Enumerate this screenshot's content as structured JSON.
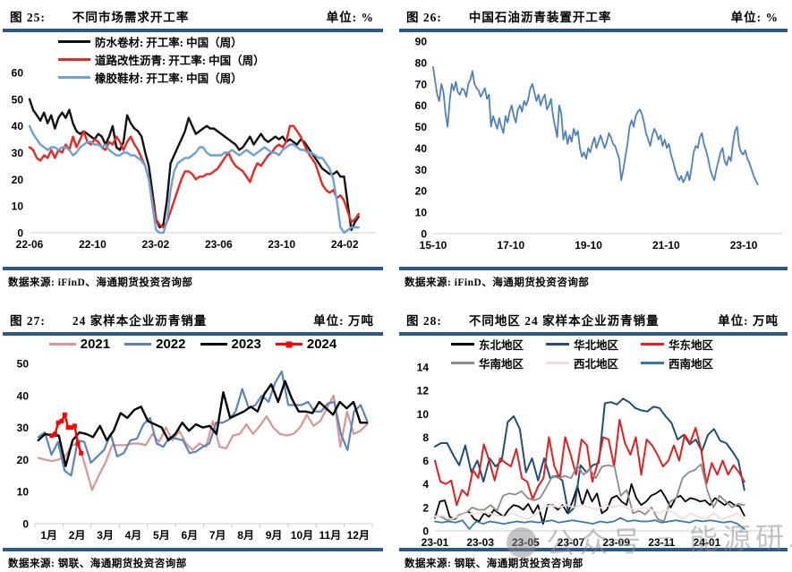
{
  "watermark": {
    "text": "公众号 = 能源研发中心"
  },
  "chart_data": [
    {
      "fig_label": "图 25:",
      "title": "不同市场需求开工率",
      "unit": "单位: %",
      "source": "数据来源: iFinD、海通期货投资咨询部",
      "type": "line",
      "ylim": [
        0,
        60
      ],
      "yticks": [
        0,
        10,
        20,
        30,
        40,
        50,
        60
      ],
      "xticklabels": [
        "22-06",
        "22-10",
        "23-02",
        "23-06",
        "23-10",
        "24-02"
      ],
      "grid": false,
      "legend_position": "top-left-inside",
      "series": [
        {
          "name": "防水卷材: 开工率: 中国（周）",
          "color": "#111111",
          "width": 2.4,
          "x0": 0,
          "x1": 0.95,
          "values": [
            50,
            46,
            44,
            42,
            45,
            41,
            44,
            39,
            43,
            45,
            43,
            46,
            41,
            38,
            37,
            38,
            37,
            36,
            35,
            37,
            36,
            33,
            36,
            40,
            32,
            31,
            34,
            44,
            41,
            39,
            38,
            36,
            30,
            25,
            15,
            5,
            2,
            3,
            12,
            26,
            29,
            32,
            35,
            38,
            43,
            40,
            37,
            38,
            39,
            40,
            39,
            39,
            38,
            37,
            36,
            35,
            34,
            33,
            31,
            32,
            34,
            36,
            33,
            35,
            37,
            35,
            34,
            35,
            36,
            35,
            36,
            34,
            35,
            34,
            33,
            35,
            34,
            32,
            30,
            28,
            26,
            24,
            23,
            22,
            22,
            23,
            21,
            21,
            11,
            1,
            4,
            6
          ]
        },
        {
          "name": "道路改性沥青: 开工率: 中国（周）",
          "color": "#E62A22",
          "width": 2.4,
          "x0": 0,
          "x1": 0.95,
          "values": [
            32,
            31,
            28,
            27,
            29,
            28,
            31,
            28,
            31,
            30,
            33,
            31,
            36,
            32,
            35,
            38,
            34,
            33,
            35,
            34,
            32,
            31,
            34,
            33,
            36,
            34,
            31,
            34,
            36,
            33,
            31,
            28,
            25,
            20,
            12,
            5,
            3,
            2,
            4,
            8,
            12,
            16,
            20,
            23,
            23,
            22,
            20,
            21,
            21,
            22,
            22,
            23,
            24,
            26,
            28,
            30,
            27,
            25,
            24,
            23,
            21,
            19,
            23,
            26,
            25,
            27,
            29,
            30,
            32,
            33,
            32,
            34,
            40,
            40,
            38,
            36,
            33,
            30,
            28,
            26,
            22,
            18,
            16,
            15,
            16,
            13,
            14,
            12,
            8,
            4,
            5,
            7
          ]
        },
        {
          "name": "橡胶鞋材: 开工率: 中国（周）",
          "color": "#6FA0D6",
          "width": 2.4,
          "x0": 0,
          "x1": 0.95,
          "values": [
            40,
            37,
            35,
            33,
            32,
            31,
            32,
            32,
            31,
            32,
            32,
            31,
            29,
            30,
            32,
            33,
            34,
            34,
            33,
            33,
            32,
            33,
            31,
            30,
            29,
            29,
            30,
            30,
            29,
            29,
            28,
            27,
            25,
            20,
            10,
            1,
            0,
            0,
            4,
            16,
            23,
            26,
            27,
            28,
            28,
            29,
            30,
            32,
            32,
            30,
            29,
            29,
            29,
            29,
            30,
            30,
            31,
            30,
            29,
            30,
            31,
            30,
            29,
            30,
            31,
            32,
            31,
            30,
            30,
            29,
            31,
            32,
            33,
            33,
            32,
            31,
            31,
            30,
            30,
            29,
            28,
            28,
            26,
            24,
            20,
            12,
            2,
            0,
            1,
            2,
            2,
            2
          ]
        }
      ]
    },
    {
      "fig_label": "图 26:",
      "title": "中国石油沥青装置开工率",
      "unit": "单位: %",
      "source": "数据来源: iFinD、海通期货投资咨询部",
      "type": "line",
      "ylim": [
        0,
        90
      ],
      "yticks": [
        0,
        10,
        20,
        30,
        40,
        50,
        60,
        70,
        80,
        90
      ],
      "xticklabels": [
        "15-10",
        "17-10",
        "19-10",
        "21-10",
        "23-10"
      ],
      "grid": false,
      "legend_position": "none",
      "series": [
        {
          "name": "中国石油沥青装置开工率",
          "color": "#4F81BD",
          "width": 1.8,
          "x0": 0,
          "x1": 0.93,
          "values": [
            78,
            71,
            65,
            62,
            70,
            66,
            56,
            50,
            62,
            70,
            67,
            71,
            66,
            65,
            68,
            67,
            64,
            70,
            72,
            76,
            70,
            68,
            67,
            64,
            66,
            68,
            63,
            65,
            50,
            55,
            52,
            49,
            54,
            50,
            47,
            55,
            52,
            57,
            60,
            55,
            52,
            58,
            60,
            57,
            62,
            60,
            63,
            68,
            70,
            66,
            62,
            65,
            60,
            63,
            65,
            58,
            60,
            63,
            55,
            50,
            45,
            60,
            56,
            44,
            48,
            42,
            46,
            43,
            49,
            46,
            48,
            40,
            36,
            38,
            35,
            40,
            38,
            42,
            45,
            40,
            43,
            46,
            43,
            40,
            43,
            47,
            45,
            42,
            41,
            38,
            35,
            25,
            30,
            36,
            42,
            50,
            53,
            50,
            55,
            57,
            58,
            56,
            52,
            47,
            44,
            41,
            46,
            49,
            47,
            44,
            46,
            41,
            44,
            40,
            42,
            37,
            34,
            30,
            27,
            25,
            27,
            24,
            26,
            29,
            25,
            31,
            38,
            41,
            40,
            45,
            47,
            42,
            39,
            35,
            30,
            27,
            25,
            30,
            34,
            38,
            40,
            34,
            32,
            36,
            34,
            42,
            48,
            50,
            41,
            38,
            37,
            39,
            35,
            33,
            30,
            27,
            25,
            23
          ]
        }
      ]
    },
    {
      "fig_label": "图 27:",
      "title": "24 家样本企业沥青销量",
      "unit": "单位: 万吨",
      "source": "数据来源: 钢联、海通期货投资咨询部",
      "type": "line",
      "ylim": [
        0,
        50
      ],
      "yticks": [
        0,
        10,
        20,
        30,
        40,
        50
      ],
      "xticklabels": [
        "1月",
        "2月",
        "3月",
        "4月",
        "5月",
        "6月",
        "7月",
        "8月",
        "9月",
        "10月",
        "11月",
        "12月"
      ],
      "grid": false,
      "legend_position": "top-center-inside",
      "series": [
        {
          "name": "2021",
          "color": "#D99694",
          "width": 2.2,
          "x0": 0.01,
          "x1": 0.985,
          "values": [
            20.5,
            20,
            19.5,
            20,
            21,
            24.5,
            25,
            18,
            10.5,
            15,
            19,
            24.5,
            24.5,
            24.5,
            25,
            25,
            24.5,
            28,
            25.5,
            30,
            26,
            29,
            25,
            23,
            25,
            24,
            32,
            24,
            23.5,
            27.5,
            28,
            31,
            28,
            30.5,
            33.5,
            30,
            28,
            27.5,
            28,
            30,
            34,
            30.5,
            32,
            36,
            40,
            24,
            35,
            28,
            29,
            31
          ]
        },
        {
          "name": "2022",
          "color": "#5B84B8",
          "width": 2.2,
          "x0": 0.01,
          "x1": 0.985,
          "values": [
            27,
            28.5,
            21.5,
            25.5,
            16.5,
            15,
            26,
            25.5,
            19,
            21,
            23,
            28,
            21,
            22,
            26,
            26.5,
            31,
            33,
            25,
            24,
            27,
            26.5,
            26,
            22,
            22.5,
            24,
            25,
            31.5,
            31.5,
            32.5,
            35,
            42,
            36,
            37,
            40,
            38,
            44,
            47.5,
            37,
            37,
            37,
            38,
            35,
            35,
            37.5,
            38,
            28,
            23,
            35,
            37,
            32
          ]
        },
        {
          "name": "2023",
          "color": "#000000",
          "width": 2.4,
          "x0": 0.01,
          "x1": 0.985,
          "values": [
            26,
            28,
            27.5,
            27.5,
            18,
            26,
            28.5,
            28,
            27,
            30.5,
            26,
            29,
            34.5,
            33,
            35.5,
            36.5,
            32,
            31,
            30,
            26,
            28,
            31.5,
            29,
            31,
            30,
            30.5,
            28,
            41,
            33,
            34,
            35,
            36.5,
            35,
            40.5,
            43.5,
            38,
            44.5,
            39,
            35,
            35,
            34.5,
            38,
            36,
            34,
            38,
            36,
            38,
            31.5,
            31.5
          ]
        },
        {
          "name": "2024",
          "color": "#FF0000",
          "width": 2.4,
          "marker": "square",
          "x0": 0.05,
          "x1": 0.137,
          "values": [
            27.5,
            28,
            31.5,
            32,
            34,
            30,
            30,
            30.5,
            25,
            22
          ]
        }
      ]
    },
    {
      "fig_label": "图 28:",
      "title": "不同地区 24 家样本企业沥青销量",
      "unit": "单位: 万吨",
      "source": "数据来源: 钢联、海通期货投资咨询部",
      "type": "line",
      "ylim": [
        0,
        14
      ],
      "yticks": [
        0,
        2,
        4,
        6,
        8,
        10,
        12,
        14
      ],
      "xticklabels": [
        "23-01",
        "23-03",
        "23-05",
        "23-07",
        "23-09",
        "23-11",
        "24-01"
      ],
      "grid": false,
      "legend_position": "top-center-inside",
      "series": [
        {
          "name": "东北地区",
          "color": "#000000",
          "width": 1.8,
          "x0": 0,
          "x1": 0.91,
          "values": [
            1.1,
            2.5,
            2.6,
            1.2,
            1.0,
            1.3,
            1.5,
            1.6,
            1.0,
            0.8,
            1.5,
            1.2,
            1.8,
            1.5,
            1.2,
            1.8,
            2.2,
            2.1,
            1.8,
            2.3,
            1.5,
            2.2,
            0.6,
            2.2,
            2.2,
            1.8,
            2.2,
            1.5,
            2.5,
            3.8,
            2.2,
            3.5,
            2.5,
            3.2,
            1.5,
            1.8,
            2.8,
            3.0,
            2.5,
            2.2,
            4.0,
            2.8,
            2.2,
            2.5,
            3.0,
            3.2,
            3.5,
            2.8,
            2.0,
            2.8,
            3.0,
            2.5,
            2.8,
            2.7,
            2.5,
            2.6,
            2.2,
            2.8,
            2.5,
            2.2,
            2.5,
            2.2,
            2.1,
            1.3
          ]
        },
        {
          "name": "华北地区",
          "color": "#1F4E79",
          "width": 2.0,
          "x0": 0,
          "x1": 0.91,
          "values": [
            7.2,
            7.5,
            7.5,
            6.5,
            5.6,
            7.3,
            5.0,
            6.0,
            4.2,
            6.2,
            5.5,
            6.0,
            9.3,
            9.8,
            8.7,
            5.0,
            6.2,
            4.3,
            6.2,
            4.5,
            4.7,
            4.3,
            1.5,
            2.0,
            5.6,
            5.0,
            5.6,
            5.8,
            10.9,
            11.0,
            10.8,
            11.3,
            11.0,
            10.5,
            10.3,
            10.2,
            10.6,
            10.5,
            9.8,
            9.2,
            7.8,
            8.2,
            7.4,
            7.8,
            6.8,
            8.2,
            8.7,
            7.7,
            7.5,
            6.8,
            6.0,
            3.5
          ]
        },
        {
          "name": "华东地区",
          "color": "#E32020",
          "width": 2.0,
          "x0": 0,
          "x1": 0.91,
          "values": [
            6.0,
            4.2,
            4.0,
            4.3,
            2.2,
            3.5,
            3.0,
            5.2,
            4.5,
            7.4,
            6.0,
            4.3,
            6.2,
            5.8,
            5.5,
            7.0,
            4.5,
            4.2,
            2.7,
            3.8,
            4.5,
            8.0,
            5.5,
            4.5,
            8.0,
            6.5,
            4.8,
            7.8,
            7.3,
            4.2,
            5.8,
            8.0,
            7.8,
            5.5,
            9.5,
            7.5,
            6.5,
            8.0,
            4.8,
            7.8,
            7.3,
            6.5,
            5.5,
            6.0,
            7.3,
            6.0,
            8.2,
            7.5,
            8.8,
            7.0,
            4.0,
            5.8,
            4.8,
            6.0,
            4.8,
            5.6,
            5.0,
            4.2
          ]
        },
        {
          "name": "华南地区",
          "color": "#8C8C8C",
          "width": 1.8,
          "x0": 0,
          "x1": 0.91,
          "values": [
            1.3,
            1.2,
            0.9,
            1.0,
            1.4,
            1.5,
            2.0,
            1.8,
            1.8,
            2.2,
            1.7,
            3.0,
            3.2,
            3.1,
            3.4,
            2.8,
            2.6,
            2.8,
            3.7,
            4.7,
            4.5,
            4.7,
            4.5,
            5.6,
            4.8,
            5.3,
            4.5,
            5.5,
            5.6,
            5.5,
            3.0,
            3.5,
            1.5,
            1.7,
            1.4,
            2.0,
            1.0,
            0.8,
            2.5,
            2.8,
            4.5,
            5.0,
            5.2,
            5.7,
            3.5,
            2.0,
            3.0,
            2.5,
            2.0,
            2.3,
            2.2
          ]
        },
        {
          "name": "西北地区",
          "color": "#F2DCDB",
          "width": 1.8,
          "x0": 0,
          "x1": 0.91,
          "values": [
            1.2,
            1.3,
            1.0,
            1.2,
            1.5,
            1.4,
            1.6,
            1.5,
            1.3,
            1.2,
            1.5,
            1.2,
            1.0,
            1.4,
            2.0,
            2.2,
            2.0,
            2.2,
            2.0,
            2.2,
            2.0,
            1.8,
            2.2,
            2.0,
            2.2,
            1.9,
            1.8,
            2.0,
            1.8,
            1.5,
            1.8,
            1.5,
            1.0,
            1.5,
            1.2,
            1.0,
            1.5,
            1.0,
            1.2,
            1.5,
            1.0
          ]
        },
        {
          "name": "西南地区",
          "color": "#3878A8",
          "width": 1.8,
          "x0": 0,
          "x1": 0.91,
          "values": [
            0.8,
            0.7,
            0.8,
            0.7,
            0.9,
            0.15,
            0.8,
            0.6,
            0.8,
            0.7,
            0.6,
            0.7,
            0.8,
            0.7,
            0.8,
            0.7,
            0.8,
            0.9,
            0.7,
            0.8,
            0.9,
            0.8,
            0.7,
            0.6,
            0.8,
            0.7,
            0.8,
            1.1,
            0.8,
            0.9,
            0.8,
            0.8,
            0.9,
            0.7,
            0.8,
            0.9,
            0.8,
            0.7,
            0.9,
            0.8,
            0.9,
            0.8,
            0.7,
            0.8,
            0.6,
            0.15
          ]
        }
      ]
    }
  ]
}
